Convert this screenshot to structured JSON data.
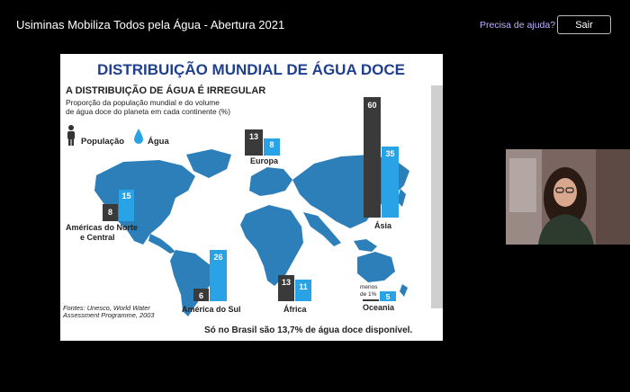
{
  "window": {
    "title": "Usiminas Mobiliza Todos pela Água - Abertura 2021",
    "help_link": "Precisa de ajuda?",
    "exit_button": "Sair"
  },
  "slide": {
    "heading": "DISTRIBUIÇÃO MUNDIAL DE ÁGUA DOCE",
    "subheading": "A DISTRIBUIÇÃO DE ÁGUA É IRREGULAR",
    "description_line1": "Proporção da população mundial e do volume",
    "description_line2": "de água doce do planeta em cada continente (%)",
    "legend": {
      "population": "População",
      "water": "Água"
    },
    "regions": [
      {
        "name_line1": "Américas do Norte",
        "name_line2": "e Central",
        "population": "8",
        "water": "15"
      },
      {
        "name_line1": "Europa",
        "name_line2": "",
        "population": "13",
        "water": "8"
      },
      {
        "name_line1": "Ásia",
        "name_line2": "",
        "population": "60",
        "water": "35"
      },
      {
        "name_line1": "América do Sul",
        "name_line2": "",
        "population": "6",
        "water": "26"
      },
      {
        "name_line1": "África",
        "name_line2": "",
        "population": "13",
        "water": "11"
      },
      {
        "name_line1": "Oceania",
        "name_line2": "",
        "population": "menos de 1%",
        "water": "5"
      }
    ],
    "oceania_note_line1": "menos",
    "oceania_note_line2": "de 1%",
    "sources_line1": "Fontes: Unesco, World Water",
    "sources_line2": "Assessment Programme, 2003",
    "footer": "Só no Brasil são 13,7% de água doce disponível.",
    "colors": {
      "heading": "#1f3f8f",
      "population_bar": "#3a3a3a",
      "water_bar": "#2aa3e6",
      "map": "#2c7fb8"
    }
  },
  "video_tile": {
    "participant": "presenter-video"
  }
}
